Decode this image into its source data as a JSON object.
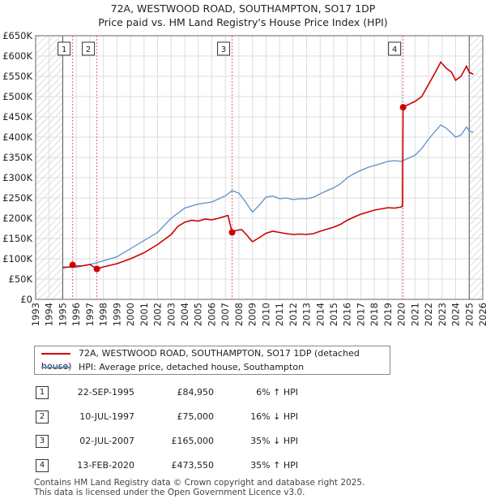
{
  "chart_data": {
    "type": "line",
    "title": "72A, WESTWOOD ROAD, SOUTHAMPTON, SO17 1DP",
    "subtitle": "Price paid vs. HM Land Registry's House Price Index (HPI)",
    "xlim": [
      1993,
      2026
    ],
    "ylim": [
      0,
      650000
    ],
    "x_ticks": [
      "1993",
      "1994",
      "1995",
      "1996",
      "1997",
      "1998",
      "1999",
      "2000",
      "2001",
      "2002",
      "2003",
      "2004",
      "2005",
      "2006",
      "2007",
      "2008",
      "2009",
      "2010",
      "2011",
      "2012",
      "2013",
      "2014",
      "2015",
      "2016",
      "2017",
      "2018",
      "2019",
      "2020",
      "2021",
      "2022",
      "2023",
      "2024",
      "2025",
      "2026"
    ],
    "y_ticks": [
      {
        "value": 0,
        "label": "£0"
      },
      {
        "value": 50000,
        "label": "£50K"
      },
      {
        "value": 100000,
        "label": "£100K"
      },
      {
        "value": 150000,
        "label": "£150K"
      },
      {
        "value": 200000,
        "label": "£200K"
      },
      {
        "value": 250000,
        "label": "£250K"
      },
      {
        "value": 300000,
        "label": "£300K"
      },
      {
        "value": 350000,
        "label": "£350K"
      },
      {
        "value": 400000,
        "label": "£400K"
      },
      {
        "value": 450000,
        "label": "£450K"
      },
      {
        "value": 500000,
        "label": "£500K"
      },
      {
        "value": 550000,
        "label": "£550K"
      },
      {
        "value": 600000,
        "label": "£600K"
      },
      {
        "value": 650000,
        "label": "£650K"
      }
    ],
    "hatched_ranges": [
      [
        1993,
        1995
      ],
      [
        2025,
        2026
      ]
    ],
    "series": [
      {
        "name": "72A, WESTWOOD ROAD, SOUTHAMPTON, SO17 1DP (detached house)",
        "color": "#cc0000",
        "points": [
          [
            1995.0,
            78000
          ],
          [
            1995.5,
            80000
          ],
          [
            1995.73,
            84950
          ],
          [
            1996.0,
            82000
          ],
          [
            1996.5,
            83000
          ],
          [
            1997.0,
            86000
          ],
          [
            1997.52,
            75000
          ],
          [
            1998.0,
            80000
          ],
          [
            1999.0,
            88000
          ],
          [
            2000.0,
            100000
          ],
          [
            2001.0,
            115000
          ],
          [
            2002.0,
            135000
          ],
          [
            2003.0,
            160000
          ],
          [
            2003.5,
            180000
          ],
          [
            2004.0,
            190000
          ],
          [
            2004.5,
            195000
          ],
          [
            2005.0,
            193000
          ],
          [
            2005.5,
            198000
          ],
          [
            2006.0,
            196000
          ],
          [
            2006.5,
            200000
          ],
          [
            2007.0,
            205000
          ],
          [
            2007.2,
            207000
          ],
          [
            2007.5,
            165000
          ],
          [
            2007.8,
            170000
          ],
          [
            2008.2,
            172000
          ],
          [
            2008.6,
            158000
          ],
          [
            2009.0,
            142000
          ],
          [
            2009.5,
            152000
          ],
          [
            2010.0,
            163000
          ],
          [
            2010.5,
            168000
          ],
          [
            2011.0,
            165000
          ],
          [
            2011.5,
            162000
          ],
          [
            2012.0,
            160000
          ],
          [
            2012.5,
            161000
          ],
          [
            2013.0,
            160000
          ],
          [
            2013.5,
            162000
          ],
          [
            2014.0,
            168000
          ],
          [
            2014.5,
            173000
          ],
          [
            2015.0,
            178000
          ],
          [
            2015.5,
            185000
          ],
          [
            2016.0,
            195000
          ],
          [
            2016.5,
            203000
          ],
          [
            2017.0,
            210000
          ],
          [
            2017.5,
            215000
          ],
          [
            2018.0,
            220000
          ],
          [
            2018.5,
            223000
          ],
          [
            2019.0,
            226000
          ],
          [
            2019.5,
            225000
          ],
          [
            2020.0,
            228000
          ],
          [
            2020.08,
            230000
          ],
          [
            2020.12,
            473550
          ],
          [
            2020.5,
            480000
          ],
          [
            2021.0,
            488000
          ],
          [
            2021.5,
            500000
          ],
          [
            2022.0,
            530000
          ],
          [
            2022.5,
            560000
          ],
          [
            2022.9,
            585000
          ],
          [
            2023.3,
            570000
          ],
          [
            2023.7,
            560000
          ],
          [
            2024.0,
            540000
          ],
          [
            2024.4,
            550000
          ],
          [
            2024.8,
            575000
          ],
          [
            2025.0,
            560000
          ],
          [
            2025.3,
            555000
          ]
        ]
      },
      {
        "name": "HPI: Average price, detached house, Southampton",
        "color": "#5b8fc9",
        "points": [
          [
            1995.0,
            80000
          ],
          [
            1996.0,
            79000
          ],
          [
            1997.0,
            86000
          ],
          [
            1998.0,
            95000
          ],
          [
            1999.0,
            105000
          ],
          [
            2000.0,
            125000
          ],
          [
            2001.0,
            145000
          ],
          [
            2002.0,
            165000
          ],
          [
            2003.0,
            200000
          ],
          [
            2004.0,
            225000
          ],
          [
            2005.0,
            235000
          ],
          [
            2006.0,
            240000
          ],
          [
            2007.0,
            255000
          ],
          [
            2007.5,
            268000
          ],
          [
            2008.0,
            262000
          ],
          [
            2008.5,
            240000
          ],
          [
            2009.0,
            215000
          ],
          [
            2009.5,
            232000
          ],
          [
            2010.0,
            252000
          ],
          [
            2010.5,
            255000
          ],
          [
            2011.0,
            248000
          ],
          [
            2011.5,
            250000
          ],
          [
            2012.0,
            246000
          ],
          [
            2012.5,
            248000
          ],
          [
            2013.0,
            248000
          ],
          [
            2013.5,
            252000
          ],
          [
            2014.0,
            260000
          ],
          [
            2014.5,
            268000
          ],
          [
            2015.0,
            275000
          ],
          [
            2015.5,
            285000
          ],
          [
            2016.0,
            300000
          ],
          [
            2016.5,
            310000
          ],
          [
            2017.0,
            318000
          ],
          [
            2017.5,
            325000
          ],
          [
            2018.0,
            330000
          ],
          [
            2018.5,
            335000
          ],
          [
            2019.0,
            340000
          ],
          [
            2019.5,
            342000
          ],
          [
            2020.0,
            340000
          ],
          [
            2020.5,
            348000
          ],
          [
            2021.0,
            355000
          ],
          [
            2021.5,
            372000
          ],
          [
            2022.0,
            395000
          ],
          [
            2022.5,
            415000
          ],
          [
            2022.9,
            430000
          ],
          [
            2023.3,
            422000
          ],
          [
            2023.7,
            410000
          ],
          [
            2024.0,
            400000
          ],
          [
            2024.4,
            405000
          ],
          [
            2024.8,
            425000
          ],
          [
            2025.0,
            415000
          ],
          [
            2025.3,
            412000
          ]
        ]
      }
    ],
    "sales": [
      {
        "num": "1",
        "x": 1995.73,
        "value": 84950,
        "date": "22-SEP-1995",
        "price": "£84,950",
        "hpi": "6% ↑ HPI"
      },
      {
        "num": "2",
        "x": 1997.52,
        "value": 75000,
        "date": "10-JUL-1997",
        "price": "£75,000",
        "hpi": "16% ↓ HPI"
      },
      {
        "num": "3",
        "x": 2007.5,
        "value": 165000,
        "date": "02-JUL-2007",
        "price": "£165,000",
        "hpi": "35% ↓ HPI"
      },
      {
        "num": "4",
        "x": 2020.12,
        "value": 473550,
        "date": "13-FEB-2020",
        "price": "£473,550",
        "hpi": "35% ↑ HPI"
      }
    ]
  },
  "legend": {
    "property_label": "72A, WESTWOOD ROAD, SOUTHAMPTON, SO17 1DP (detached house)",
    "hpi_label": "HPI: Average price, detached house, Southampton",
    "property_color": "#cc0000",
    "hpi_color": "#5b8fc9"
  },
  "footer": {
    "line1": "Contains HM Land Registry data © Crown copyright and database right 2025.",
    "line2": "This data is licensed under the Open Government Licence v3.0."
  }
}
